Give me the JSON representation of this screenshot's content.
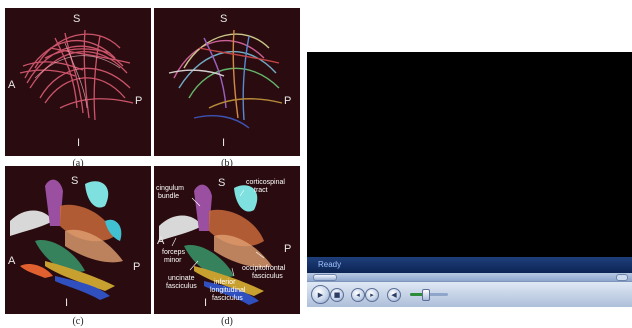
{
  "figure": {
    "captions": [
      "(a)",
      "(b)",
      "(c)",
      "(d)"
    ],
    "axis_labels": {
      "superior": "S",
      "anterior": "A",
      "posterior": "P",
      "inferior": "I"
    },
    "annotations": {
      "cingulum_line1": "cingulum",
      "cingulum_line2": "bundle",
      "corticospinal_line1": "corticospinal",
      "corticospinal_line2": "tract",
      "forceps_line1": "forceps",
      "forceps_line2": "minor",
      "uncinate_line1": "uncinate",
      "uncinate_line2": "fasciculus",
      "occipitofrontal_line1": "occipitofrontal",
      "occipitofrontal_line2": "fasciculus",
      "inferior_line1": "inferior",
      "inferior_line2": "longitudinal",
      "inferior_line3": "fasciculus"
    }
  },
  "player": {
    "status": "Ready",
    "icons": {
      "play": "play-icon",
      "stop": "stop-icon",
      "previous": "previous-icon",
      "next": "next-icon",
      "mute": "speaker-icon"
    },
    "volume_level": 0.4
  }
}
